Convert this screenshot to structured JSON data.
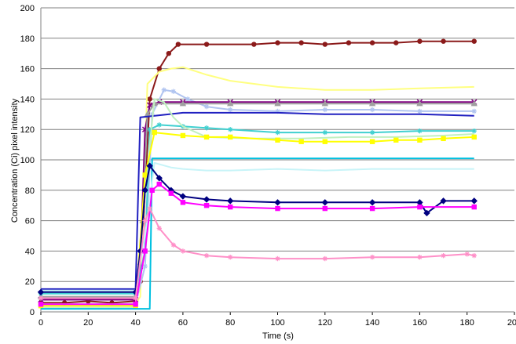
{
  "chart_data": {
    "type": "line",
    "title": "",
    "xlabel": "Time (s)",
    "ylabel": "Concentration (Ci) pixel intensity",
    "xlim": [
      0,
      200
    ],
    "ylim": [
      0,
      200
    ],
    "xticks": [
      0,
      20,
      40,
      60,
      80,
      100,
      120,
      140,
      160,
      180,
      200
    ],
    "yticks": [
      0,
      20,
      40,
      60,
      80,
      100,
      120,
      140,
      160,
      180,
      200
    ],
    "grid": "horizontal",
    "legend": "none",
    "series": [
      {
        "color": "#8b1a1a",
        "marker": "circle",
        "points": [
          [
            0,
            6
          ],
          [
            10,
            6
          ],
          [
            20,
            7
          ],
          [
            30,
            6
          ],
          [
            40,
            7
          ],
          [
            42,
            20
          ],
          [
            44,
            80
          ],
          [
            46,
            140
          ],
          [
            50,
            160
          ],
          [
            54,
            170
          ],
          [
            58,
            176
          ],
          [
            70,
            176
          ],
          [
            90,
            176
          ],
          [
            100,
            177
          ],
          [
            110,
            177
          ],
          [
            120,
            176
          ],
          [
            130,
            177
          ],
          [
            140,
            177
          ],
          [
            150,
            177
          ],
          [
            160,
            178
          ],
          [
            170,
            178
          ],
          [
            183,
            178
          ]
        ]
      },
      {
        "color": "#ffff80",
        "marker": "none",
        "points": [
          [
            0,
            5
          ],
          [
            40,
            5
          ],
          [
            42,
            10
          ],
          [
            45,
            150
          ],
          [
            50,
            158
          ],
          [
            55,
            160
          ],
          [
            60,
            161
          ],
          [
            70,
            156
          ],
          [
            80,
            152
          ],
          [
            90,
            150
          ],
          [
            100,
            148
          ],
          [
            110,
            147
          ],
          [
            120,
            146
          ],
          [
            140,
            146
          ],
          [
            160,
            147
          ],
          [
            183,
            148
          ]
        ]
      },
      {
        "color": "#b0c4f0",
        "marker": "star",
        "points": [
          [
            0,
            5
          ],
          [
            40,
            5
          ],
          [
            44,
            30
          ],
          [
            47,
            130
          ],
          [
            52,
            146
          ],
          [
            56,
            145
          ],
          [
            62,
            140
          ],
          [
            70,
            135
          ],
          [
            80,
            133
          ],
          [
            100,
            132
          ],
          [
            120,
            133
          ],
          [
            140,
            133
          ],
          [
            160,
            132
          ],
          [
            183,
            132
          ]
        ]
      },
      {
        "color": "#800080",
        "marker": "x",
        "points": [
          [
            0,
            8
          ],
          [
            40,
            8
          ],
          [
            42,
            30
          ],
          [
            44,
            120
          ],
          [
            46,
            136
          ],
          [
            50,
            138
          ],
          [
            60,
            138
          ],
          [
            80,
            138
          ],
          [
            100,
            138
          ],
          [
            120,
            138
          ],
          [
            140,
            138
          ],
          [
            160,
            138
          ],
          [
            183,
            138
          ]
        ]
      },
      {
        "color": "#a0a0a0",
        "marker": "triangle",
        "points": [
          [
            0,
            10
          ],
          [
            40,
            10
          ],
          [
            43,
            60
          ],
          [
            45,
            130
          ],
          [
            48,
            137
          ],
          [
            60,
            137
          ],
          [
            80,
            137
          ],
          [
            100,
            137
          ],
          [
            120,
            137
          ],
          [
            140,
            137
          ],
          [
            160,
            137
          ],
          [
            183,
            137
          ]
        ]
      },
      {
        "color": "#2020c0",
        "marker": "none",
        "points": [
          [
            0,
            15
          ],
          [
            40,
            15
          ],
          [
            42,
            128
          ],
          [
            60,
            131
          ],
          [
            80,
            131
          ],
          [
            100,
            131
          ],
          [
            120,
            130
          ],
          [
            140,
            130
          ],
          [
            160,
            130
          ],
          [
            183,
            129
          ]
        ]
      },
      {
        "color": "#40d0d0",
        "marker": "star",
        "points": [
          [
            0,
            12
          ],
          [
            40,
            12
          ],
          [
            44,
            40
          ],
          [
            46,
            120
          ],
          [
            50,
            123
          ],
          [
            60,
            122
          ],
          [
            70,
            121
          ],
          [
            80,
            120
          ],
          [
            100,
            118
          ],
          [
            120,
            118
          ],
          [
            140,
            118
          ],
          [
            160,
            119
          ],
          [
            183,
            119
          ]
        ]
      },
      {
        "color": "#c0f0c0",
        "marker": "none",
        "points": [
          [
            0,
            3
          ],
          [
            40,
            3
          ],
          [
            44,
            80
          ],
          [
            48,
            140
          ],
          [
            52,
            138
          ],
          [
            56,
            128
          ],
          [
            60,
            122
          ],
          [
            70,
            115
          ],
          [
            90,
            114
          ],
          [
            110,
            114
          ],
          [
            130,
            115
          ],
          [
            150,
            115
          ],
          [
            170,
            116
          ],
          [
            183,
            117
          ]
        ]
      },
      {
        "color": "#ffff00",
        "marker": "square",
        "points": [
          [
            0,
            4
          ],
          [
            40,
            4
          ],
          [
            44,
            90
          ],
          [
            48,
            118
          ],
          [
            60,
            116
          ],
          [
            70,
            115
          ],
          [
            80,
            115
          ],
          [
            100,
            113
          ],
          [
            110,
            112
          ],
          [
            120,
            112
          ],
          [
            140,
            112
          ],
          [
            150,
            113
          ],
          [
            160,
            113
          ],
          [
            170,
            114
          ],
          [
            183,
            115
          ]
        ]
      },
      {
        "color": "#00c0e0",
        "marker": "none",
        "points": [
          [
            0,
            2
          ],
          [
            46,
            2
          ],
          [
            47,
            101
          ],
          [
            60,
            101
          ],
          [
            80,
            101
          ],
          [
            100,
            101
          ],
          [
            120,
            101
          ],
          [
            140,
            101
          ],
          [
            160,
            101
          ],
          [
            183,
            101
          ]
        ]
      },
      {
        "color": "#c8f4f8",
        "marker": "none",
        "points": [
          [
            0,
            14
          ],
          [
            40,
            14
          ],
          [
            44,
            50
          ],
          [
            48,
            98
          ],
          [
            55,
            95
          ],
          [
            60,
            94
          ],
          [
            70,
            93
          ],
          [
            80,
            93
          ],
          [
            100,
            94
          ],
          [
            120,
            93
          ],
          [
            140,
            94
          ],
          [
            160,
            94
          ],
          [
            183,
            94
          ]
        ]
      },
      {
        "color": "#000080",
        "marker": "diamond",
        "points": [
          [
            0,
            13
          ],
          [
            40,
            13
          ],
          [
            42,
            40
          ],
          [
            44,
            80
          ],
          [
            46,
            96
          ],
          [
            50,
            88
          ],
          [
            55,
            80
          ],
          [
            60,
            76
          ],
          [
            70,
            74
          ],
          [
            80,
            73
          ],
          [
            100,
            72
          ],
          [
            120,
            72
          ],
          [
            140,
            72
          ],
          [
            160,
            72
          ],
          [
            163,
            65
          ],
          [
            170,
            73
          ],
          [
            183,
            73
          ]
        ]
      },
      {
        "color": "#ff00ff",
        "marker": "square",
        "points": [
          [
            0,
            5
          ],
          [
            40,
            5
          ],
          [
            44,
            40
          ],
          [
            47,
            80
          ],
          [
            50,
            84
          ],
          [
            55,
            78
          ],
          [
            60,
            72
          ],
          [
            70,
            70
          ],
          [
            80,
            69
          ],
          [
            100,
            68
          ],
          [
            120,
            68
          ],
          [
            140,
            68
          ],
          [
            160,
            69
          ],
          [
            183,
            69
          ]
        ]
      },
      {
        "color": "#ff90c8",
        "marker": "star",
        "points": [
          [
            0,
            9
          ],
          [
            40,
            9
          ],
          [
            44,
            60
          ],
          [
            46,
            68
          ],
          [
            50,
            55
          ],
          [
            56,
            44
          ],
          [
            60,
            40
          ],
          [
            70,
            37
          ],
          [
            80,
            36
          ],
          [
            100,
            35
          ],
          [
            120,
            35
          ],
          [
            140,
            36
          ],
          [
            160,
            36
          ],
          [
            170,
            37
          ],
          [
            180,
            38
          ],
          [
            183,
            37
          ]
        ]
      }
    ]
  }
}
